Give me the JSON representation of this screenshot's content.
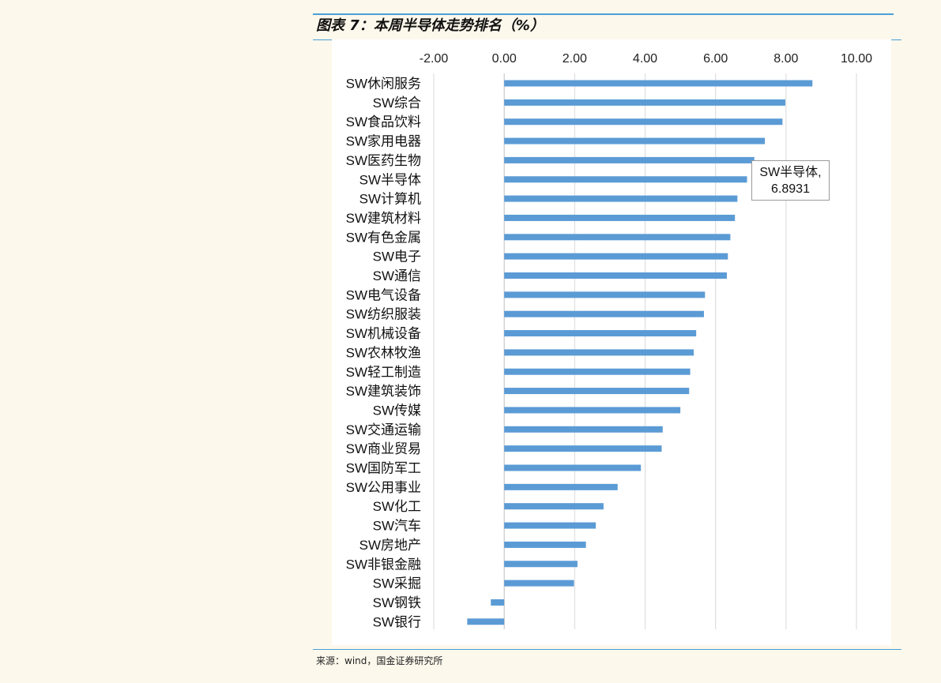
{
  "figure": {
    "title": "图表 7：本周半导体走势排名（%）",
    "source": "来源：wind，国金证券研究所"
  },
  "tooltip": {
    "line1": "SW半导体,",
    "line2": "6.8931"
  },
  "colors": {
    "bar": "#5b9bd5",
    "grid": "#d9d9d9",
    "rule": "#4a9fd6"
  },
  "chart_data": {
    "type": "bar",
    "orientation": "horizontal",
    "title": "",
    "xlabel": "",
    "ylabel": "",
    "x_axis_position": "top",
    "xlim": [
      -2,
      10
    ],
    "x_ticks": [
      "-2.00",
      "0.00",
      "2.00",
      "4.00",
      "6.00",
      "8.00",
      "10.00"
    ],
    "grid": true,
    "categories": [
      "SW休闲服务",
      "SW综合",
      "SW食品饮料",
      "SW家用电器",
      "SW医药生物",
      "SW半导体",
      "SW计算机",
      "SW建筑材料",
      "SW有色金属",
      "SW电子",
      "SW通信",
      "SW电气设备",
      "SW纺织服装",
      "SW机械设备",
      "SW农林牧渔",
      "SW轻工制造",
      "SW建筑装饰",
      "SW传媒",
      "SW交通运输",
      "SW商业贸易",
      "SW国防军工",
      "SW公用事业",
      "SW化工",
      "SW汽车",
      "SW房地产",
      "SW非银金融",
      "SW采掘",
      "SW钢铁",
      "SW银行"
    ],
    "values": [
      8.75,
      7.98,
      7.9,
      7.4,
      7.1,
      6.8931,
      6.62,
      6.55,
      6.42,
      6.35,
      6.32,
      5.7,
      5.67,
      5.45,
      5.38,
      5.28,
      5.25,
      5.0,
      4.5,
      4.47,
      3.88,
      3.22,
      2.82,
      2.6,
      2.32,
      2.08,
      1.98,
      -0.38,
      -1.05
    ]
  }
}
